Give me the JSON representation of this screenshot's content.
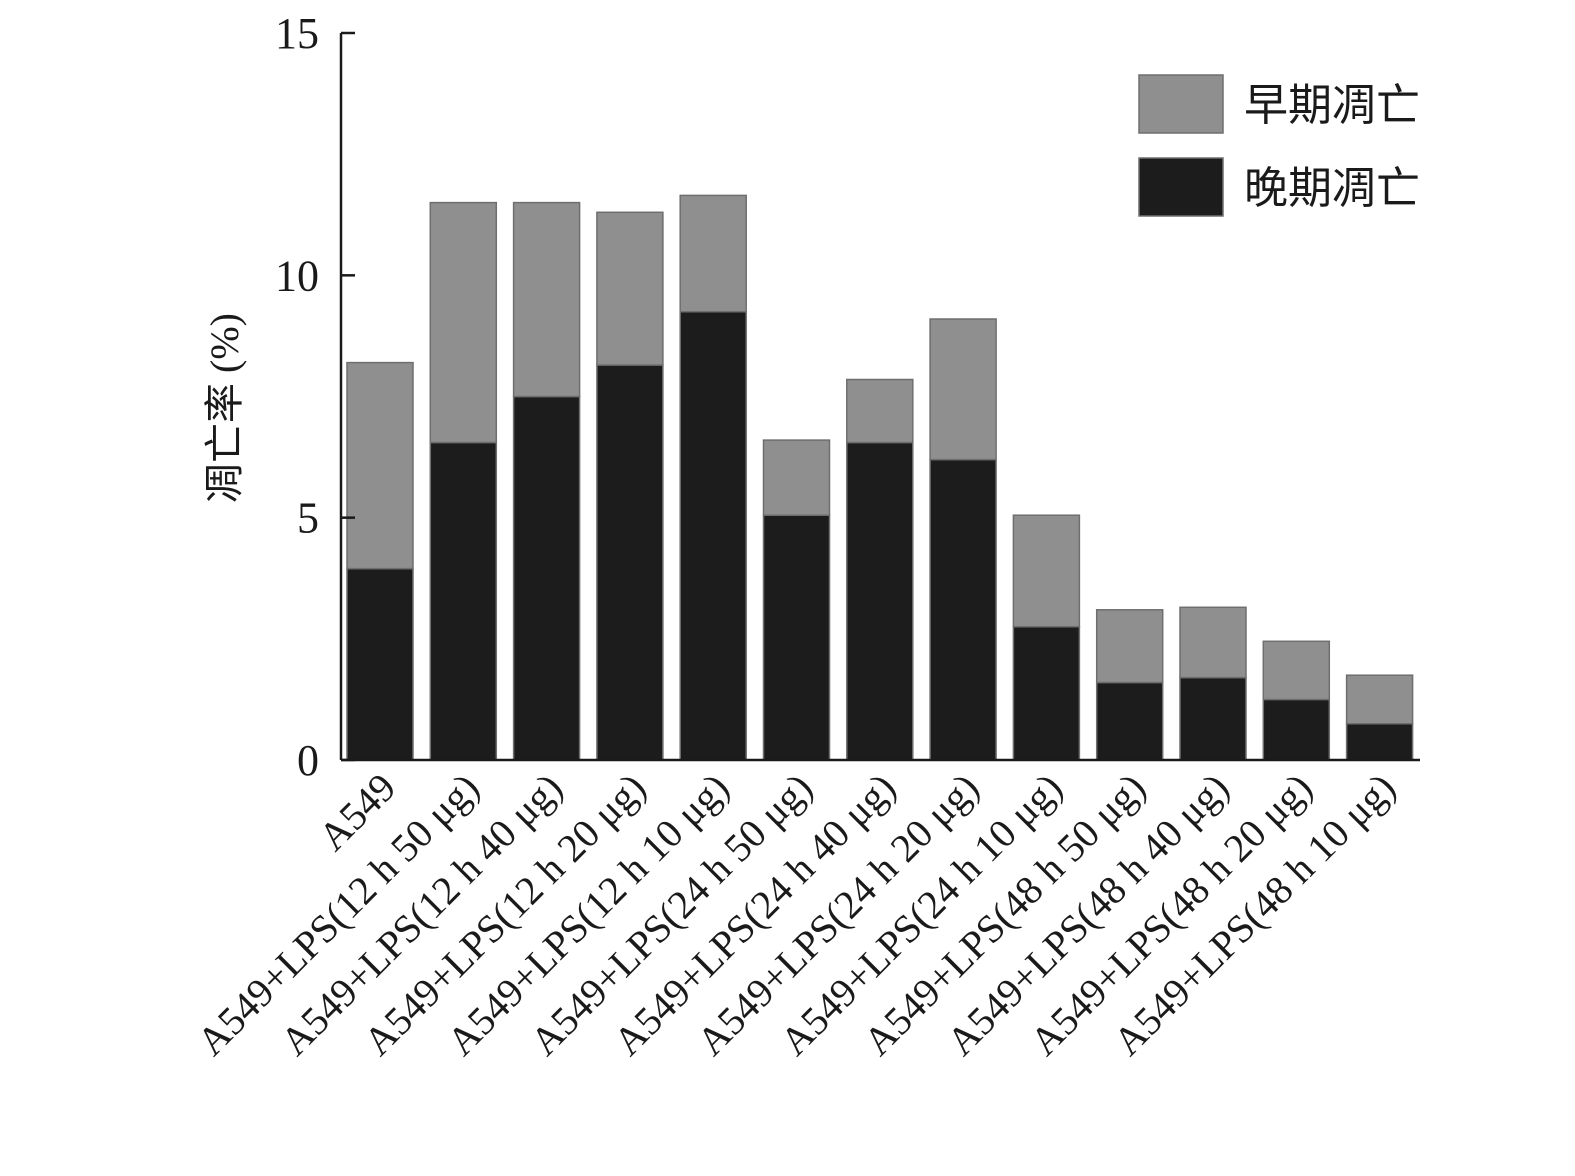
{
  "chart_data": {
    "type": "bar",
    "stacked": true,
    "title": "",
    "xlabel": "",
    "ylabel": "凋亡率 (%)",
    "ylim": [
      0,
      15
    ],
    "yticks": [
      0,
      5,
      10,
      15
    ],
    "grid": false,
    "legend_position": "top-right",
    "categories": [
      "A549",
      "A549+LPS(12 h 50 μg)",
      "A549+LPS(12 h 40 μg)",
      "A549+LPS(12 h 20 μg)",
      "A549+LPS(12 h 10 μg)",
      "A549+LPS(24 h 50 μg)",
      "A549+LPS(24 h 40 μg)",
      "A549+LPS(24 h 20 μg)",
      "A549+LPS(24 h 10 μg)",
      "A549+LPS(48 h 50 μg)",
      "A549+LPS(48 h 40 μg)",
      "A549+LPS(48 h 20 μg)",
      "A549+LPS(48 h 10 μg)"
    ],
    "series": [
      {
        "name": "晚期凋亡",
        "color": "#1c1c1c",
        "values": [
          3.95,
          6.55,
          7.5,
          8.15,
          9.25,
          5.05,
          6.55,
          6.2,
          2.75,
          1.6,
          1.7,
          1.25,
          0.75
        ]
      },
      {
        "name": "早期凋亡",
        "color": "#8f8f8f",
        "values": [
          4.25,
          4.95,
          4.0,
          3.15,
          2.4,
          1.55,
          1.3,
          2.9,
          2.3,
          1.5,
          1.45,
          1.2,
          1.0
        ]
      }
    ],
    "legend_order": [
      "早期凋亡",
      "晚期凋亡"
    ]
  }
}
